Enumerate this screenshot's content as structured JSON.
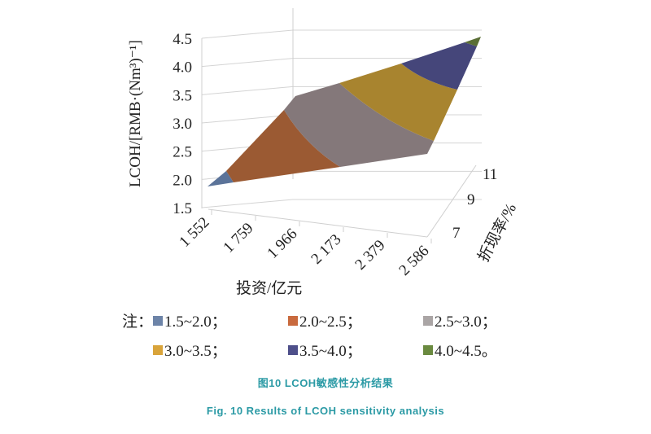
{
  "chart_data": {
    "type": "surface",
    "title": "",
    "xlabel": "投资/亿元",
    "ylabel": "折现率/%",
    "zlabel": "LCOH/[RMB·(Nm³)⁻¹]",
    "x_ticks": [
      "1 552",
      "1 759",
      "1 966",
      "2 173",
      "2 379",
      "2 586"
    ],
    "y_ticks": [
      "7",
      "9",
      "11"
    ],
    "z_ticks": [
      "1.5",
      "2.0",
      "2.5",
      "3.0",
      "3.5",
      "4.0",
      "4.5"
    ],
    "zlim": [
      1.5,
      4.5
    ],
    "surface_corners": [
      {
        "investment": 1552,
        "discount_rate": 7,
        "lcoh": 1.8
      },
      {
        "investment": 2586,
        "discount_rate": 7,
        "lcoh": 2.4
      },
      {
        "investment": 1552,
        "discount_rate": 11,
        "lcoh": 3.4
      },
      {
        "investment": 2586,
        "discount_rate": 11,
        "lcoh": 4.5
      }
    ],
    "legend": {
      "prefix": "注：",
      "bands": [
        {
          "label": "1.5~2.0；",
          "color": "#6d84a8"
        },
        {
          "label": "2.0~2.5；",
          "color": "#c96a3e"
        },
        {
          "label": "2.5~3.0；",
          "color": "#aaa5a5"
        },
        {
          "label": "3.0~3.5；",
          "color": "#d9a43a"
        },
        {
          "label": "3.5~4.0；",
          "color": "#4e4f8a"
        },
        {
          "label": "4.0~4.5。",
          "color": "#6a8a3f"
        }
      ]
    }
  },
  "caption_cn": "图10 LCOH敏感性分析结果",
  "caption_en": "Fig. 10 Results of LCOH sensitivity analysis"
}
